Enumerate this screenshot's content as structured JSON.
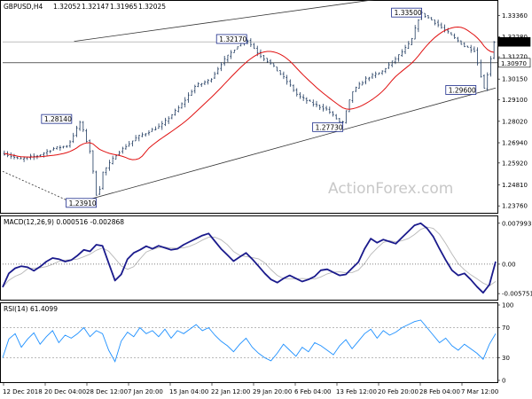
{
  "chart_data": [
    {
      "type": "candlestick",
      "title": "GBPUSD,H4",
      "ohlc": [
        "1.32052",
        "1.32147",
        "1.31965",
        "1.32025"
      ],
      "watermark": "ActionForex.com",
      "y_ticks": [
        "1.33360",
        "1.32280",
        "1.31270",
        "1.30150",
        "1.29100",
        "1.28020",
        "1.26940",
        "1.25920",
        "1.24810",
        "1.23760"
      ],
      "ylim": [
        1.235,
        1.34
      ],
      "current_price": "1.32025",
      "level_line": "1.30970",
      "price_labels": [
        {
          "text": "1.33500",
          "value": 1.335
        },
        {
          "text": "1.32170",
          "value": 1.3217
        },
        {
          "text": "1.28140",
          "value": 1.2814
        },
        {
          "text": "1.29600",
          "value": 1.296
        },
        {
          "text": "1.27730",
          "value": 1.2773
        },
        {
          "text": "1.23910",
          "value": 1.2391
        }
      ],
      "moving_average": true,
      "trend_channel": {
        "lower": [
          [
            0.145,
            1.2388
          ],
          [
            1.0,
            1.297
          ]
        ],
        "upper": [
          [
            0.145,
            1.3205
          ],
          [
            1.0,
            1.35
          ]
        ]
      },
      "dashed_trendline": [
        [
          0.0,
          1.255
        ],
        [
          0.145,
          1.2388
        ]
      ],
      "waypoints": [
        [
          0.0,
          1.264
        ],
        [
          0.03,
          1.261
        ],
        [
          0.07,
          1.263
        ],
        [
          0.1,
          1.2665
        ],
        [
          0.13,
          1.268
        ],
        [
          0.155,
          1.28
        ],
        [
          0.175,
          1.265
        ],
        [
          0.19,
          1.24
        ],
        [
          0.2,
          1.254
        ],
        [
          0.23,
          1.264
        ],
        [
          0.27,
          1.272
        ],
        [
          0.32,
          1.278
        ],
        [
          0.36,
          1.288
        ],
        [
          0.39,
          1.298
        ],
        [
          0.42,
          1.301
        ],
        [
          0.445,
          1.31
        ],
        [
          0.475,
          1.318
        ],
        [
          0.495,
          1.3215
        ],
        [
          0.52,
          1.314
        ],
        [
          0.545,
          1.309
        ],
        [
          0.575,
          1.301
        ],
        [
          0.6,
          1.293
        ],
        [
          0.63,
          1.289
        ],
        [
          0.66,
          1.286
        ],
        [
          0.69,
          1.2785
        ],
        [
          0.71,
          1.295
        ],
        [
          0.74,
          1.302
        ],
        [
          0.77,
          1.305
        ],
        [
          0.8,
          1.312
        ],
        [
          0.83,
          1.32
        ],
        [
          0.85,
          1.335
        ],
        [
          0.88,
          1.33
        ],
        [
          0.91,
          1.324
        ],
        [
          0.94,
          1.318
        ],
        [
          0.96,
          1.316
        ],
        [
          0.98,
          1.2965
        ],
        [
          0.99,
          1.308
        ],
        [
          1.0,
          1.3202
        ]
      ]
    },
    {
      "type": "line",
      "title": "MACD(12,26,9) 0.000516 -0.002868",
      "y_ticks": [
        "0.007993",
        "0.00",
        "-0.005751"
      ],
      "ylim": [
        -0.0066,
        0.009
      ],
      "series": [
        {
          "values": [
            -0.0045,
            -0.0018,
            -0.0008,
            -0.0004,
            -0.0006,
            -0.0013,
            -0.0005,
            0.0005,
            0.0012,
            0.001,
            0.0005,
            0.0008,
            0.0017,
            0.0028,
            0.0025,
            0.0038,
            0.0036,
            0.0002,
            -0.0032,
            -0.002,
            0.001,
            0.0022,
            0.0028,
            0.0035,
            0.003,
            0.0036,
            0.0032,
            0.0028,
            0.003,
            0.0038,
            0.0044,
            0.005,
            0.0056,
            0.006,
            0.0045,
            0.003,
            0.0018,
            0.0006,
            0.0014,
            0.0022,
            0.001,
            -0.0004,
            -0.0018,
            -0.003,
            -0.0036,
            -0.0028,
            -0.0022,
            -0.0028,
            -0.0034,
            -0.003,
            -0.0024,
            -0.0012,
            -0.001,
            -0.0016,
            -0.0022,
            -0.002,
            -0.0008,
            0.0004,
            0.003,
            0.005,
            0.0042,
            0.0048,
            0.0044,
            0.004,
            0.0052,
            0.0064,
            0.0076,
            0.008,
            0.007,
            0.0054,
            0.003,
            0.0008,
            -0.0012,
            -0.0022,
            -0.0018,
            -0.003,
            -0.0044,
            -0.0056,
            -0.004,
            0.0005
          ]
        }
      ]
    },
    {
      "type": "line",
      "title": "RSI(14) 61.4099",
      "y_ticks": [
        "100",
        "70",
        "30",
        "0"
      ],
      "ylim": [
        0,
        100
      ],
      "series": [
        {
          "values": [
            30,
            55,
            62,
            44,
            55,
            63,
            48,
            58,
            66,
            50,
            60,
            56,
            62,
            70,
            58,
            66,
            62,
            40,
            25,
            52,
            64,
            58,
            70,
            62,
            66,
            58,
            68,
            56,
            66,
            62,
            68,
            74,
            66,
            70,
            60,
            52,
            46,
            38,
            48,
            56,
            44,
            36,
            30,
            26,
            36,
            48,
            40,
            32,
            44,
            38,
            50,
            46,
            40,
            34,
            46,
            54,
            42,
            52,
            62,
            68,
            56,
            66,
            60,
            64,
            70,
            74,
            78,
            80,
            70,
            60,
            50,
            56,
            46,
            40,
            48,
            42,
            36,
            28,
            48,
            62
          ]
        }
      ]
    }
  ],
  "x_axis": {
    "tick_labels": [
      "12 Dec 2018",
      "20 Dec 04:00",
      "28 Dec 12:00",
      "7 Jan 20:00",
      "15 Jan 04:00",
      "22 Jan 12:00",
      "29 Jan 20:00",
      "6 Feb 04:00",
      "13 Feb 12:00",
      "20 Feb 20:00",
      "28 Feb 04:00",
      "7 Mar 12:00"
    ]
  }
}
